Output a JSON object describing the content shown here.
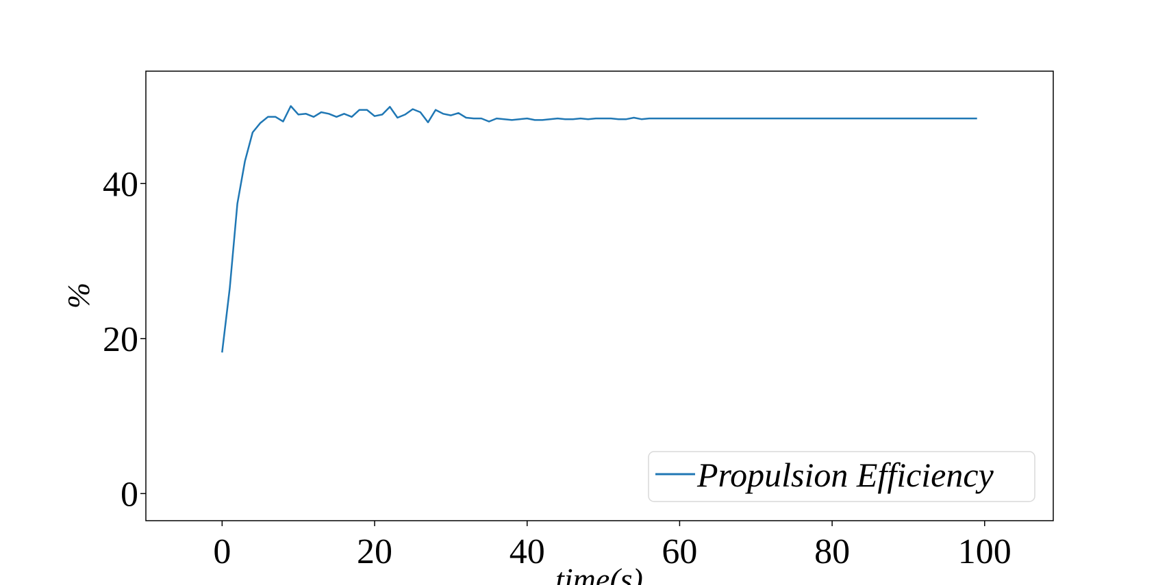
{
  "chart_data": {
    "type": "line",
    "title": "",
    "xlabel": "time(s)",
    "ylabel": "%",
    "xlim": [
      -10,
      109
    ],
    "ylim": [
      -3.5,
      54.5
    ],
    "xticks": [
      0,
      20,
      40,
      60,
      80,
      100
    ],
    "yticks": [
      0,
      20,
      40
    ],
    "grid": false,
    "legend": {
      "position": "lower-right"
    },
    "series": [
      {
        "name": "Propulsion Efficiency",
        "color": "#1f77b4",
        "x": [
          0,
          1,
          2,
          3,
          4,
          5,
          6,
          7,
          8,
          9,
          10,
          11,
          12,
          13,
          14,
          15,
          16,
          17,
          18,
          19,
          20,
          21,
          22,
          23,
          24,
          25,
          26,
          27,
          28,
          29,
          30,
          31,
          32,
          33,
          34,
          35,
          36,
          37,
          38,
          39,
          40,
          41,
          42,
          43,
          44,
          45,
          46,
          47,
          48,
          49,
          50,
          51,
          52,
          53,
          54,
          55,
          56,
          57,
          58,
          59,
          60,
          61,
          62,
          63,
          64,
          65,
          66,
          67,
          68,
          69,
          70,
          71,
          72,
          73,
          74,
          75,
          76,
          77,
          78,
          79,
          80,
          81,
          82,
          83,
          84,
          85,
          86,
          87,
          88,
          89,
          90,
          91,
          92,
          93,
          94,
          95,
          96,
          97,
          98,
          99
        ],
        "values": [
          18.2,
          26.5,
          37.4,
          42.9,
          46.6,
          47.8,
          48.6,
          48.6,
          48.0,
          50.0,
          48.9,
          49.0,
          48.6,
          49.2,
          49.0,
          48.6,
          49.0,
          48.6,
          49.5,
          49.5,
          48.7,
          48.9,
          49.9,
          48.5,
          48.9,
          49.6,
          49.2,
          47.9,
          49.5,
          49.0,
          48.8,
          49.1,
          48.5,
          48.4,
          48.4,
          48.0,
          48.4,
          48.3,
          48.2,
          48.3,
          48.4,
          48.2,
          48.2,
          48.3,
          48.4,
          48.3,
          48.3,
          48.4,
          48.3,
          48.4,
          48.4,
          48.4,
          48.3,
          48.3,
          48.5,
          48.3,
          48.4,
          48.4,
          48.4,
          48.4,
          48.4,
          48.4,
          48.4,
          48.4,
          48.4,
          48.4,
          48.4,
          48.4,
          48.4,
          48.4,
          48.4,
          48.4,
          48.4,
          48.4,
          48.4,
          48.4,
          48.4,
          48.4,
          48.4,
          48.4,
          48.4,
          48.4,
          48.4,
          48.4,
          48.4,
          48.4,
          48.4,
          48.4,
          48.4,
          48.4,
          48.4,
          48.4,
          48.4,
          48.4,
          48.4,
          48.4,
          48.4,
          48.4,
          48.4,
          48.4
        ]
      }
    ]
  }
}
